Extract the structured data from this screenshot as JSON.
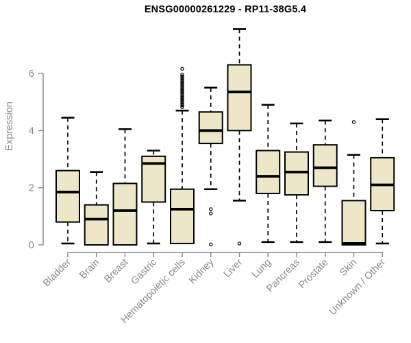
{
  "chart_data": {
    "type": "boxplot",
    "title": "ENSG00000261229 - RP11-38G5.4",
    "ylabel": "Expression",
    "xlabel": "",
    "yticks": [
      0,
      2,
      4,
      6
    ],
    "ylim": [
      0,
      7.6
    ],
    "grid": false,
    "legend": "none",
    "categories": [
      "Bladder",
      "Brain",
      "Breast",
      "Gastric",
      "Hematopoietic cells",
      "Kidney",
      "Liver",
      "Lung",
      "Pancreas",
      "Prostate",
      "Skin",
      "Unknown / Other"
    ],
    "boxes": [
      {
        "category": "Bladder",
        "whisker_low": 0.05,
        "q1": 0.8,
        "median": 1.85,
        "q3": 2.6,
        "whisker_high": 4.45,
        "outliers": []
      },
      {
        "category": "Brain",
        "whisker_low": 0.0,
        "q1": 0.0,
        "median": 0.9,
        "q3": 1.4,
        "whisker_high": 2.55,
        "outliers": []
      },
      {
        "category": "Breast",
        "whisker_low": 0.0,
        "q1": 0.0,
        "median": 1.2,
        "q3": 2.15,
        "whisker_high": 4.05,
        "outliers": []
      },
      {
        "category": "Gastric",
        "whisker_low": 0.05,
        "q1": 1.5,
        "median": 2.85,
        "q3": 3.1,
        "whisker_high": 3.3,
        "outliers": []
      },
      {
        "category": "Hematopoietic cells",
        "whisker_low": 0.05,
        "q1": 0.05,
        "median": 1.25,
        "q3": 1.95,
        "whisker_high": 4.7,
        "outliers": [
          4.82,
          4.88,
          4.94,
          5.0,
          5.06,
          5.12,
          5.18,
          5.24,
          5.3,
          5.36,
          5.42,
          5.48,
          5.54,
          5.6,
          5.66,
          5.72,
          5.78,
          5.84,
          5.9,
          5.96,
          6.16
        ]
      },
      {
        "category": "Kidney",
        "whisker_low": 1.95,
        "q1": 3.55,
        "median": 4.0,
        "q3": 4.65,
        "whisker_high": 5.5,
        "outliers": [
          1.25,
          1.1,
          0.02
        ]
      },
      {
        "category": "Liver",
        "whisker_low": 1.55,
        "q1": 4.0,
        "median": 5.35,
        "q3": 6.3,
        "whisker_high": 7.55,
        "outliers": [
          0.05
        ]
      },
      {
        "category": "Lung",
        "whisker_low": 0.1,
        "q1": 1.8,
        "median": 2.4,
        "q3": 3.3,
        "whisker_high": 4.9,
        "outliers": []
      },
      {
        "category": "Pancreas",
        "whisker_low": 0.1,
        "q1": 1.75,
        "median": 2.55,
        "q3": 3.25,
        "whisker_high": 4.25,
        "outliers": []
      },
      {
        "category": "Prostate",
        "whisker_low": 0.1,
        "q1": 2.05,
        "median": 2.7,
        "q3": 3.5,
        "whisker_high": 4.35,
        "outliers": []
      },
      {
        "category": "Skin",
        "whisker_low": 0.0,
        "q1": 0.0,
        "median": 0.05,
        "q3": 1.55,
        "whisker_high": 3.15,
        "outliers": [
          4.3
        ]
      },
      {
        "category": "Unknown / Other",
        "whisker_low": 0.05,
        "q1": 1.2,
        "median": 2.1,
        "q3": 3.05,
        "whisker_high": 4.4,
        "outliers": []
      }
    ],
    "colors": {
      "box_fill": "#EDE7C8",
      "box_border": "#000000",
      "median": "#000000",
      "whisker": "#000000",
      "axis": "#8a8a8a",
      "tick_label": "#8a8a8a",
      "title": "#000000",
      "background": "#ffffff"
    }
  }
}
